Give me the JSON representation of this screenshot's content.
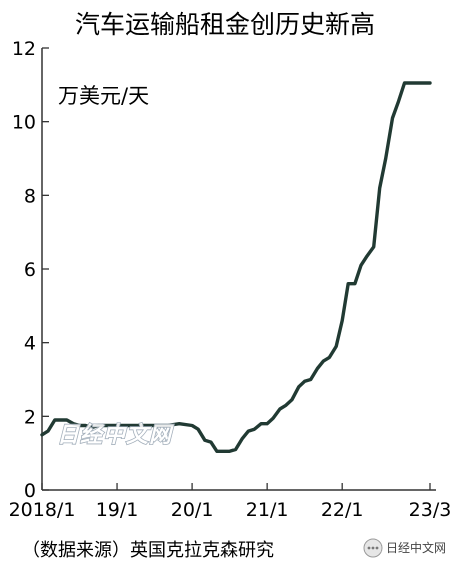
{
  "chart_data": {
    "type": "line",
    "title": "汽车运输船租金创历史新高",
    "unit_label": "万美元/天",
    "source": "（数据来源）英国克拉克森研究",
    "xlabel": "",
    "ylabel": "",
    "ylim": [
      0,
      12
    ],
    "yticks": [
      0,
      2,
      4,
      6,
      8,
      10,
      12
    ],
    "xlim": [
      2018.0,
      2023.25
    ],
    "xticks": [
      {
        "label": "2018/1",
        "value": 2018.0
      },
      {
        "label": "19/1",
        "value": 2019.0
      },
      {
        "label": "20/1",
        "value": 2020.0
      },
      {
        "label": "21/1",
        "value": 2021.0
      },
      {
        "label": "22/1",
        "value": 2022.0
      },
      {
        "label": "23/3",
        "value": 2023.17
      }
    ],
    "grid": false,
    "line_color": "#213a33",
    "series": [
      {
        "x": [
          2018.0,
          2018.08,
          2018.17,
          2018.25,
          2018.33,
          2018.42,
          2018.5,
          2018.58,
          2018.67,
          2018.75,
          2018.83,
          2018.92,
          2019.0,
          2019.17,
          2019.33,
          2019.5,
          2019.67,
          2019.83,
          2020.0,
          2020.08,
          2020.17,
          2020.25,
          2020.33,
          2020.42,
          2020.5,
          2020.58,
          2020.67,
          2020.75,
          2020.83,
          2020.92,
          2021.0,
          2021.08,
          2021.17,
          2021.25,
          2021.33,
          2021.42,
          2021.5,
          2021.58,
          2021.67,
          2021.75,
          2021.83,
          2021.92,
          2022.0,
          2022.08,
          2022.17,
          2022.25,
          2022.33,
          2022.42,
          2022.5,
          2022.58,
          2022.67,
          2022.75,
          2022.83,
          2022.92,
          2023.0,
          2023.08,
          2023.17
        ],
        "values": [
          1.5,
          1.6,
          1.9,
          1.9,
          1.9,
          1.8,
          1.75,
          1.75,
          1.7,
          1.75,
          1.75,
          1.75,
          1.75,
          1.75,
          1.75,
          1.75,
          1.75,
          1.8,
          1.75,
          1.65,
          1.35,
          1.3,
          1.05,
          1.05,
          1.05,
          1.1,
          1.4,
          1.6,
          1.65,
          1.8,
          1.8,
          1.95,
          2.2,
          2.3,
          2.45,
          2.8,
          2.95,
          3.0,
          3.3,
          3.5,
          3.6,
          3.9,
          4.6,
          5.6,
          5.6,
          6.1,
          6.35,
          6.6,
          8.2,
          9.0,
          10.1,
          10.55,
          11.05,
          11.05,
          11.05,
          11.05,
          11.05
        ]
      }
    ]
  },
  "watermark": {
    "text": "日经中文网",
    "logo_text": "日经中文网"
  }
}
